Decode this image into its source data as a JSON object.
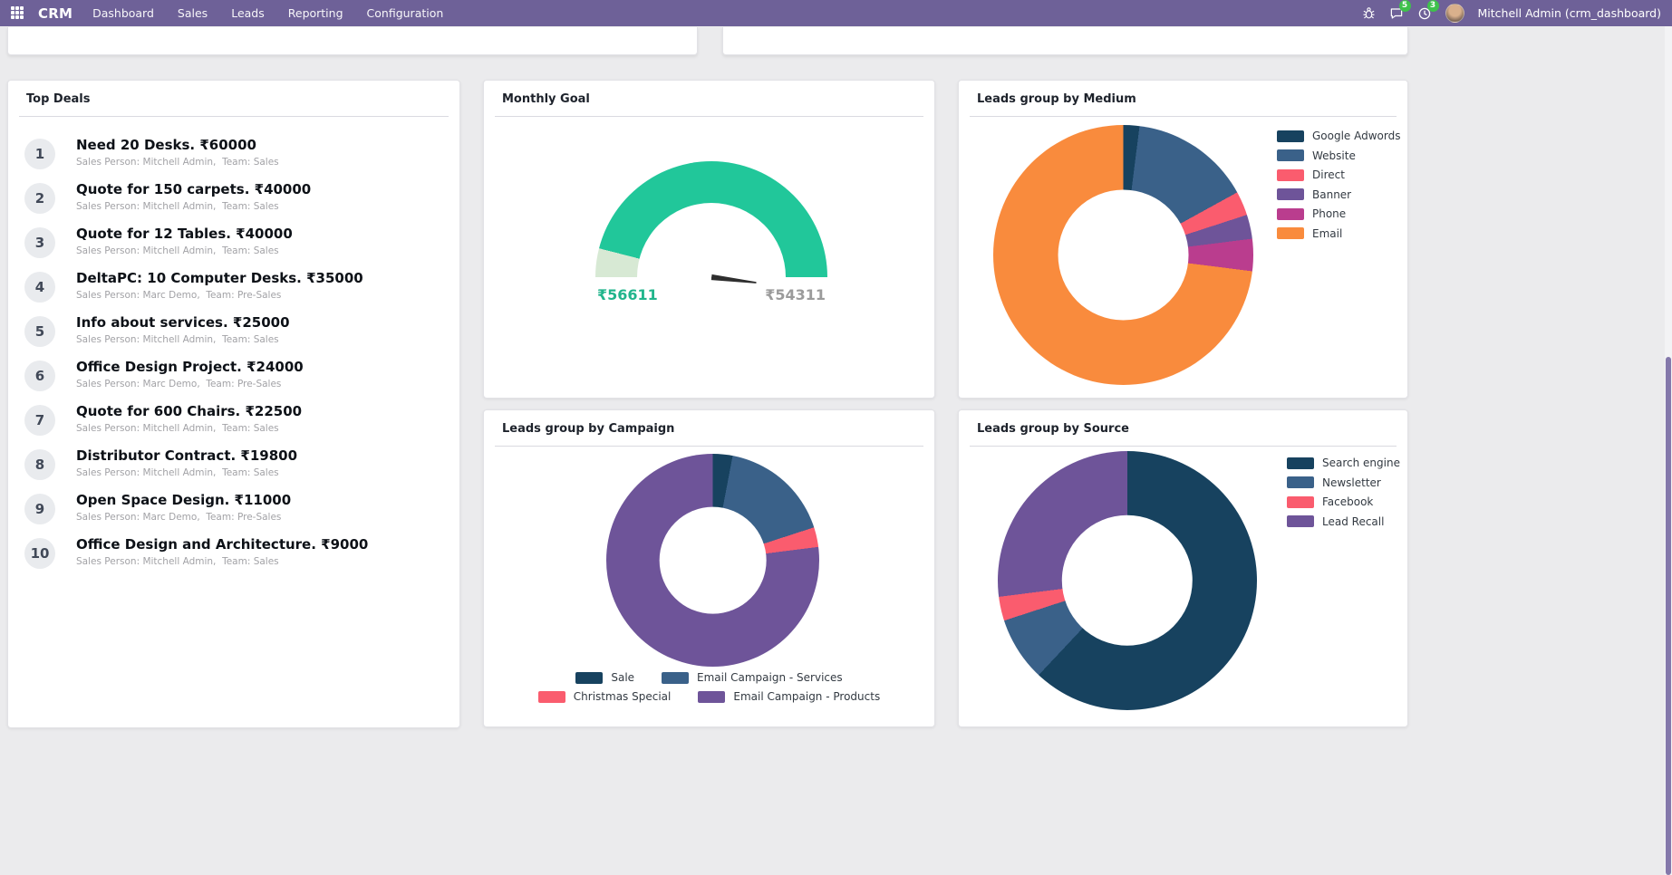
{
  "app": {
    "name": "CRM",
    "menu": [
      "Dashboard",
      "Sales",
      "Leads",
      "Reporting",
      "Configuration"
    ],
    "user_label": "Mitchell Admin (crm_dashboard)",
    "message_badge": "5",
    "activity_badge": "3",
    "icons": [
      "apps-grid-icon",
      "bug-icon",
      "chat-bubble-icon",
      "activity-clock-icon",
      "user-avatar"
    ]
  },
  "colors": {
    "topbar": "#6e6198",
    "badge_green": "#3fc14c",
    "gauge_fill": "#21c79a",
    "gauge_rest": "#d7e9d4",
    "navy": "#17425f",
    "steel_blue": "#3a6189",
    "red_pink": "#fa5c6e",
    "purple": "#6e5499",
    "magenta": "#ba3d8e",
    "orange": "#f98b3d"
  },
  "top_deals": {
    "title": "Top Deals",
    "sales_person_label": "Sales Person:",
    "team_label": "Team:",
    "items": [
      {
        "rank": "1",
        "title": "Need 20 Desks. ₹60000",
        "salesperson": "Mitchell Admin",
        "team": "Sales"
      },
      {
        "rank": "2",
        "title": "Quote for 150 carpets. ₹40000",
        "salesperson": "Mitchell Admin",
        "team": "Sales"
      },
      {
        "rank": "3",
        "title": "Quote for 12 Tables. ₹40000",
        "salesperson": "Mitchell Admin",
        "team": "Sales"
      },
      {
        "rank": "4",
        "title": "DeltaPC: 10 Computer Desks. ₹35000",
        "salesperson": "Marc Demo",
        "team": "Pre-Sales"
      },
      {
        "rank": "5",
        "title": "Info about services. ₹25000",
        "salesperson": "Mitchell Admin",
        "team": "Sales"
      },
      {
        "rank": "6",
        "title": "Office Design Project. ₹24000",
        "salesperson": "Marc Demo",
        "team": "Pre-Sales"
      },
      {
        "rank": "7",
        "title": "Quote for 600 Chairs. ₹22500",
        "salesperson": "Mitchell Admin",
        "team": "Sales"
      },
      {
        "rank": "8",
        "title": "Distributor Contract. ₹19800",
        "salesperson": "Mitchell Admin",
        "team": "Sales"
      },
      {
        "rank": "9",
        "title": "Open Space Design. ₹11000",
        "salesperson": "Marc Demo",
        "team": "Pre-Sales"
      },
      {
        "rank": "10",
        "title": "Office Design and Architecture. ₹9000",
        "salesperson": "Mitchell Admin",
        "team": "Sales"
      }
    ]
  },
  "chart_data": [
    {
      "type": "gauge",
      "title": "Monthly Goal",
      "achieved_label": "₹56611",
      "target_label": "₹54311",
      "fill_percent": 92,
      "colors": {
        "fill": "#21c79a",
        "rest": "#d7e9d4"
      }
    },
    {
      "type": "pie",
      "title": "Leads group by Medium",
      "legend_position": "right",
      "series": [
        {
          "name": "Google Adwords",
          "value": 2,
          "color": "#17425f"
        },
        {
          "name": "Website",
          "value": 15,
          "color": "#3a6189"
        },
        {
          "name": "Direct",
          "value": 3,
          "color": "#fa5c6e"
        },
        {
          "name": "Banner",
          "value": 3,
          "color": "#6e5499"
        },
        {
          "name": "Phone",
          "value": 4,
          "color": "#ba3d8e"
        },
        {
          "name": "Email",
          "value": 73,
          "color": "#f98b3d"
        }
      ]
    },
    {
      "type": "pie",
      "title": "Leads group by Campaign",
      "legend_position": "bottom",
      "series": [
        {
          "name": "Sale",
          "value": 3,
          "color": "#17425f"
        },
        {
          "name": "Email Campaign - Services",
          "value": 17,
          "color": "#3a6189"
        },
        {
          "name": "Christmas Special",
          "value": 3,
          "color": "#fa5c6e"
        },
        {
          "name": "Email Campaign - Products",
          "value": 77,
          "color": "#6e5499"
        }
      ]
    },
    {
      "type": "pie",
      "title": "Leads group by Source",
      "legend_position": "right",
      "series": [
        {
          "name": "Search engine",
          "value": 62,
          "color": "#17425f"
        },
        {
          "name": "Newsletter",
          "value": 8,
          "color": "#3a6189"
        },
        {
          "name": "Facebook",
          "value": 3,
          "color": "#fa5c6e"
        },
        {
          "name": "Lead Recall",
          "value": 27,
          "color": "#6e5499"
        }
      ]
    }
  ]
}
